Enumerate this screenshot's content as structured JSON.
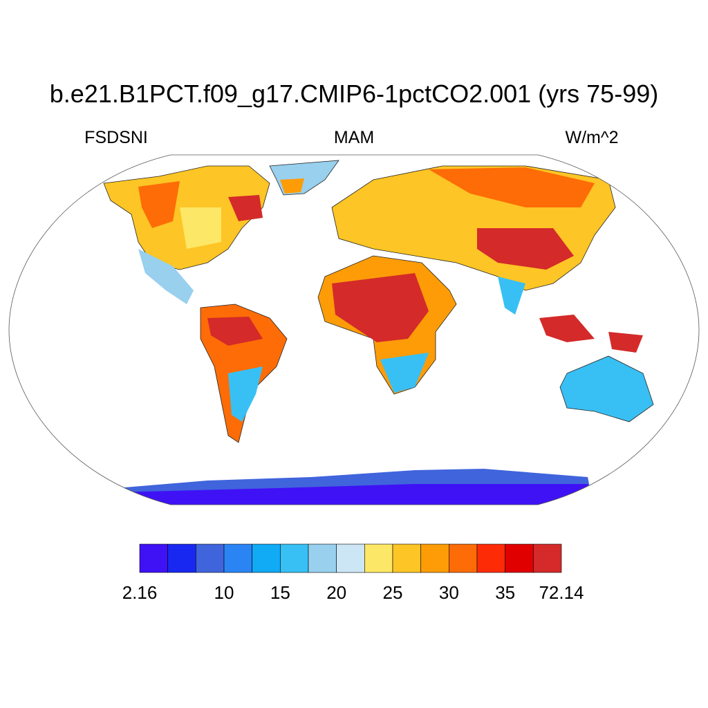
{
  "header": {
    "title": "b.e21.B1PCT.f09_g17.CMIP6-1pctCO2.001 (yrs 75-99)",
    "left": "FSDSNI",
    "center": "MAM",
    "right": "W/m^2"
  },
  "colorbar": {
    "colors": [
      "#3f12f5",
      "#1828f0",
      "#4064dc",
      "#2a84f4",
      "#10aaf5",
      "#38c0f4",
      "#98d0ee",
      "#cce6f6",
      "#fde766",
      "#fdc525",
      "#fd9c07",
      "#fd6c07",
      "#fd2c07",
      "#e00000",
      "#d42a2a"
    ],
    "labels": [
      2.16,
      null,
      null,
      10,
      null,
      15,
      null,
      20,
      null,
      25,
      null,
      30,
      null,
      35,
      null,
      72.14
    ]
  }
}
